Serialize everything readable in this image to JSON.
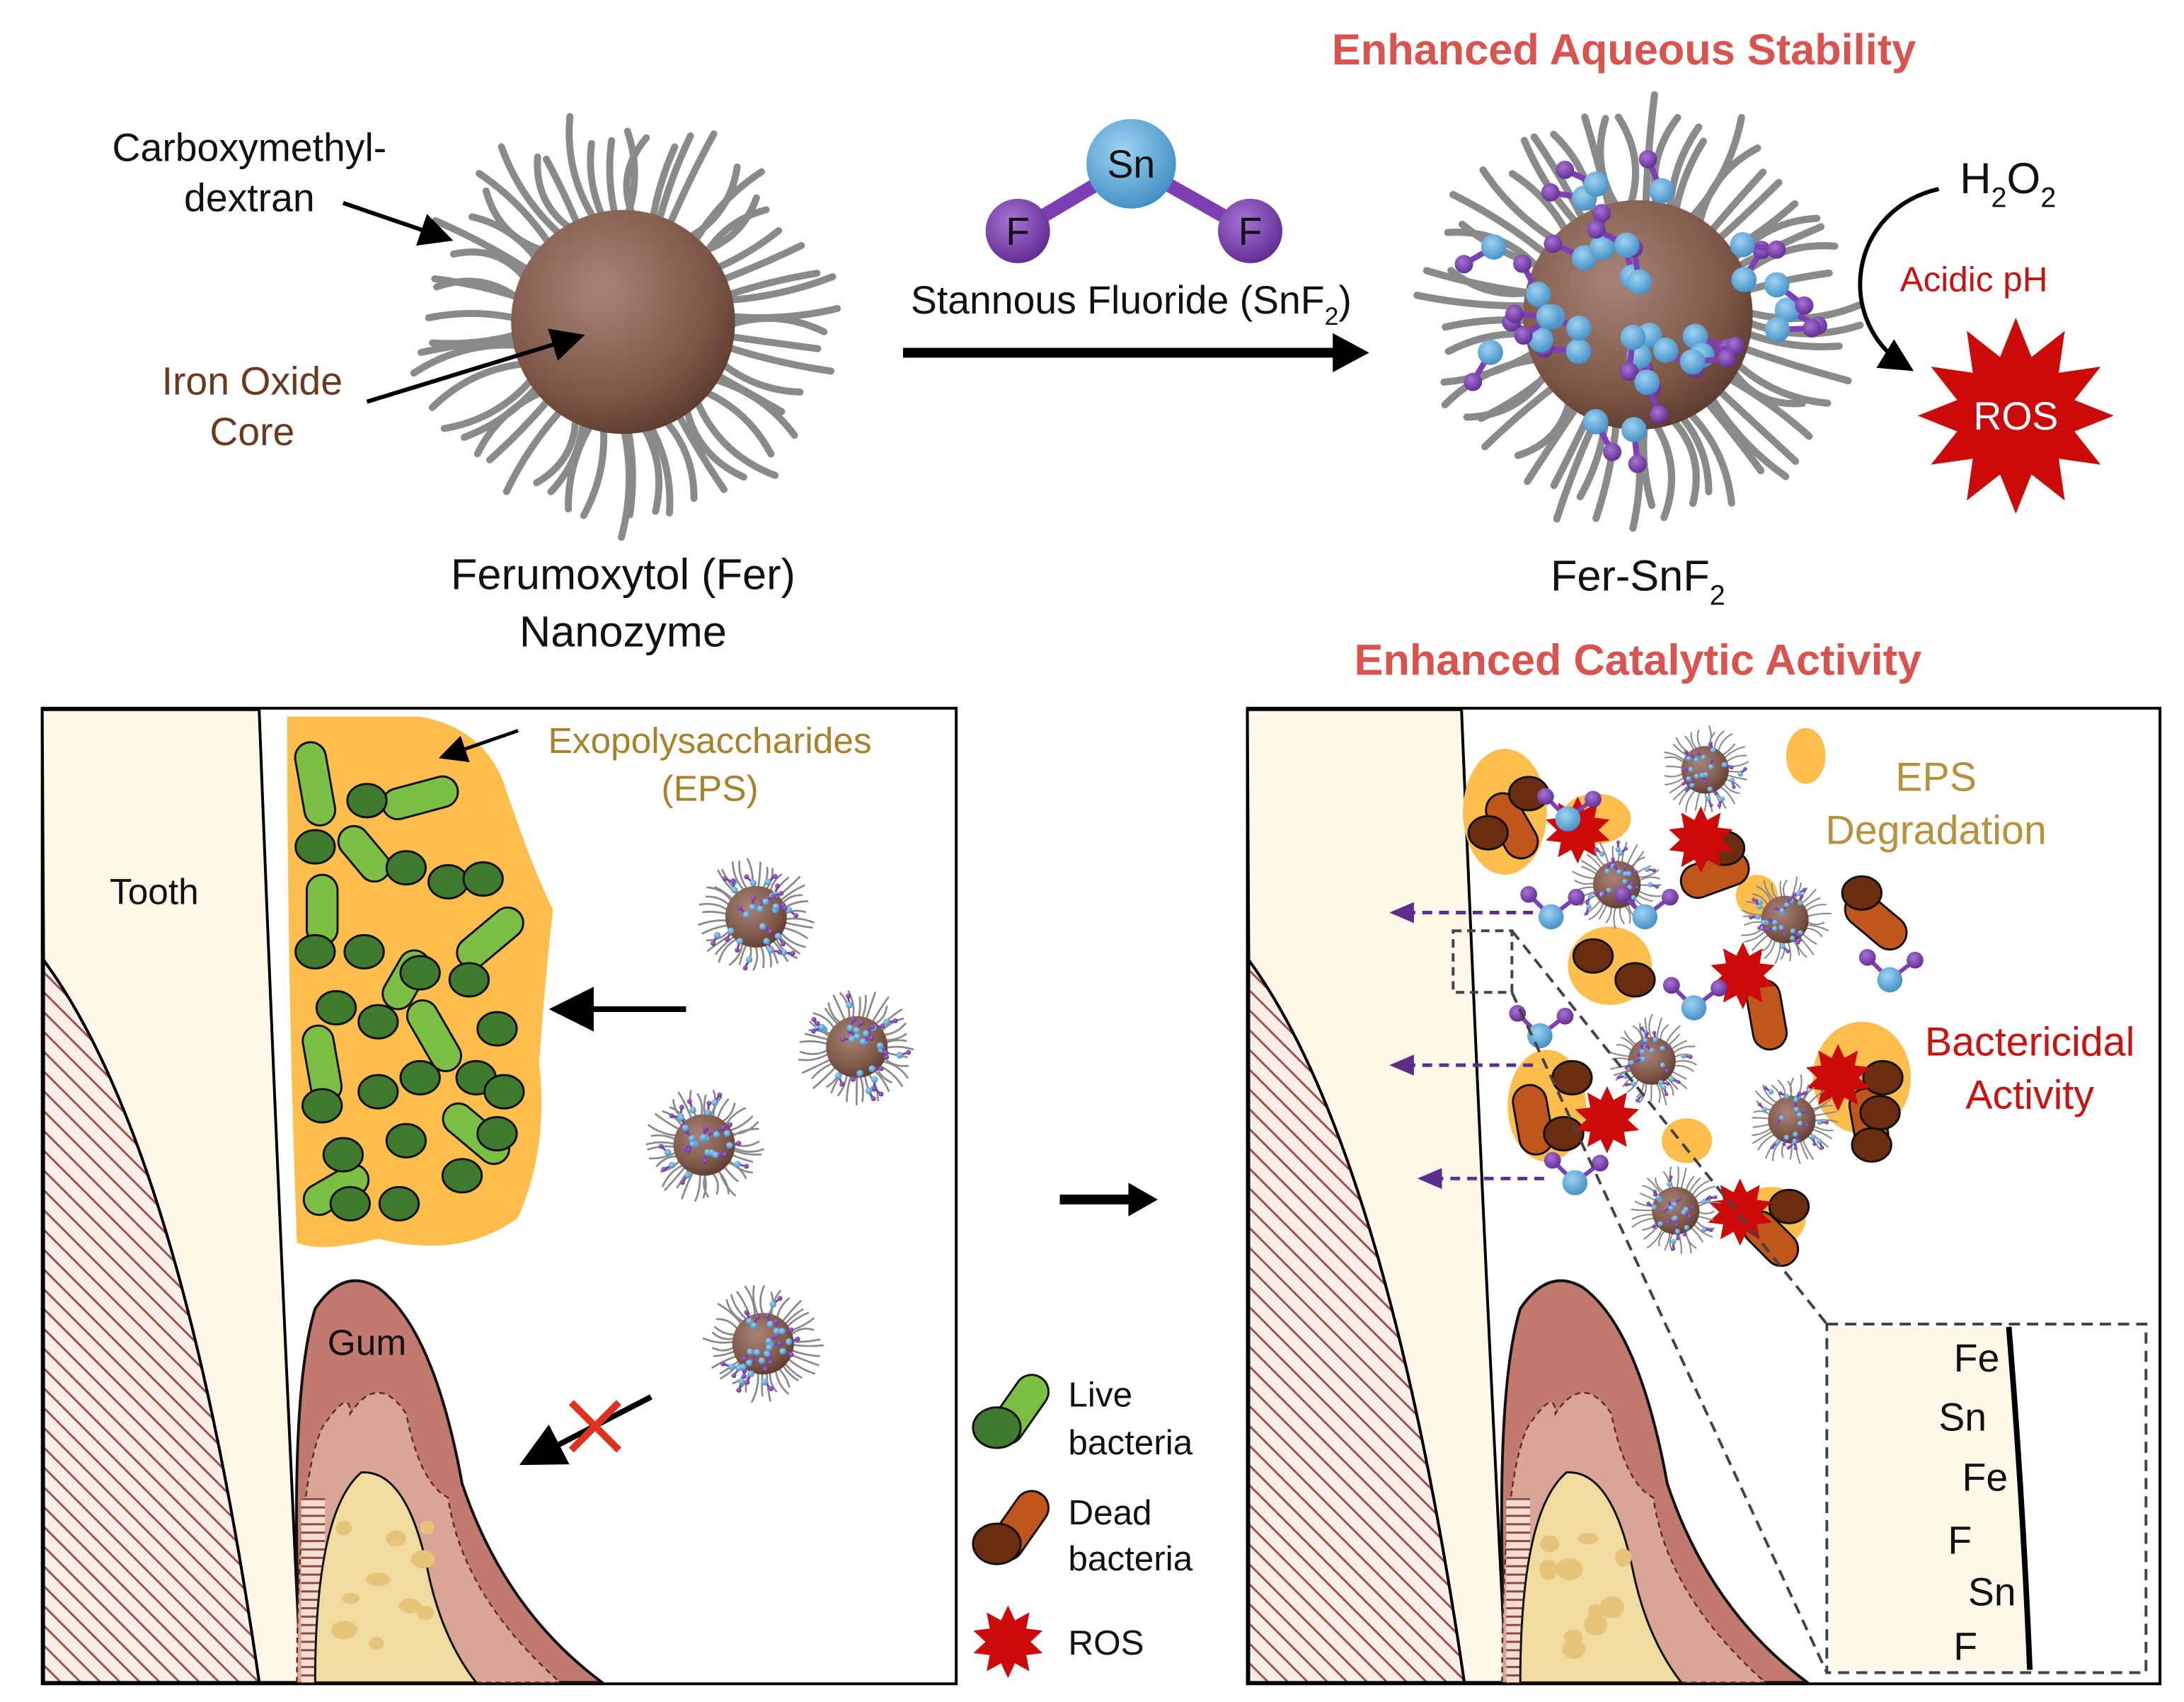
{
  "colors": {
    "title_red": "#d9534f",
    "ros_red": "#cc0a0a",
    "core_brown": "#8a6354",
    "tin_blue": "#5aa9d9",
    "fluorine_purple": "#7d3fb3",
    "eps_orange": "#fdbe4d",
    "live_dark_green": "#3f7a2e",
    "live_light_green": "#7dbf45",
    "dead_dark": "#6b2d10",
    "dead_light": "#c0561b",
    "gum": "#c27a70",
    "tooth": "#fdf8e8",
    "bone": "#f0dca0",
    "iron_label_brown": "#6b3a1e",
    "eps_label_gold": "#a8812a"
  },
  "top": {
    "title_stability": "Enhanced Aqueous Stability",
    "title_catalytic": "Enhanced Catalytic Activity",
    "fer": {
      "label_coating_1": "Carboxymethyl-",
      "label_coating_2": "dextran",
      "label_core_1": "Iron Oxide",
      "label_core_2": "Core",
      "name_1": "Ferumoxytol (Fer)",
      "name_2": "Nanozyme"
    },
    "snf2": {
      "atom_sn": "Sn",
      "atom_f": "F",
      "label": "Stannous Fluoride (SnF",
      "label_sub": "2",
      "label_end": ")"
    },
    "fer_snf2": {
      "name": "Fer-SnF",
      "name_sub": "2"
    },
    "reaction": {
      "h2o2_h": "H",
      "h2o2_sub1": "2",
      "h2o2_o": "O",
      "h2o2_sub2": "2",
      "condition": "Acidic pH",
      "product": "ROS"
    }
  },
  "left_panel": {
    "tooth": "Tooth",
    "gum": "Gum",
    "eps_1": "Exopolysaccharides",
    "eps_2": "(EPS)"
  },
  "legend": {
    "live_1": "Live",
    "live_2": "bacteria",
    "dead_1": "Dead",
    "dead_2": "bacteria",
    "ros": "ROS"
  },
  "right_panel": {
    "eps_deg_1": "EPS",
    "eps_deg_2": "Degradation",
    "bact_1": "Bactericidal",
    "bact_2": "Activity",
    "inset_labels": [
      "Fe",
      "Sn",
      "Fe",
      "F",
      "Sn",
      "F"
    ]
  }
}
